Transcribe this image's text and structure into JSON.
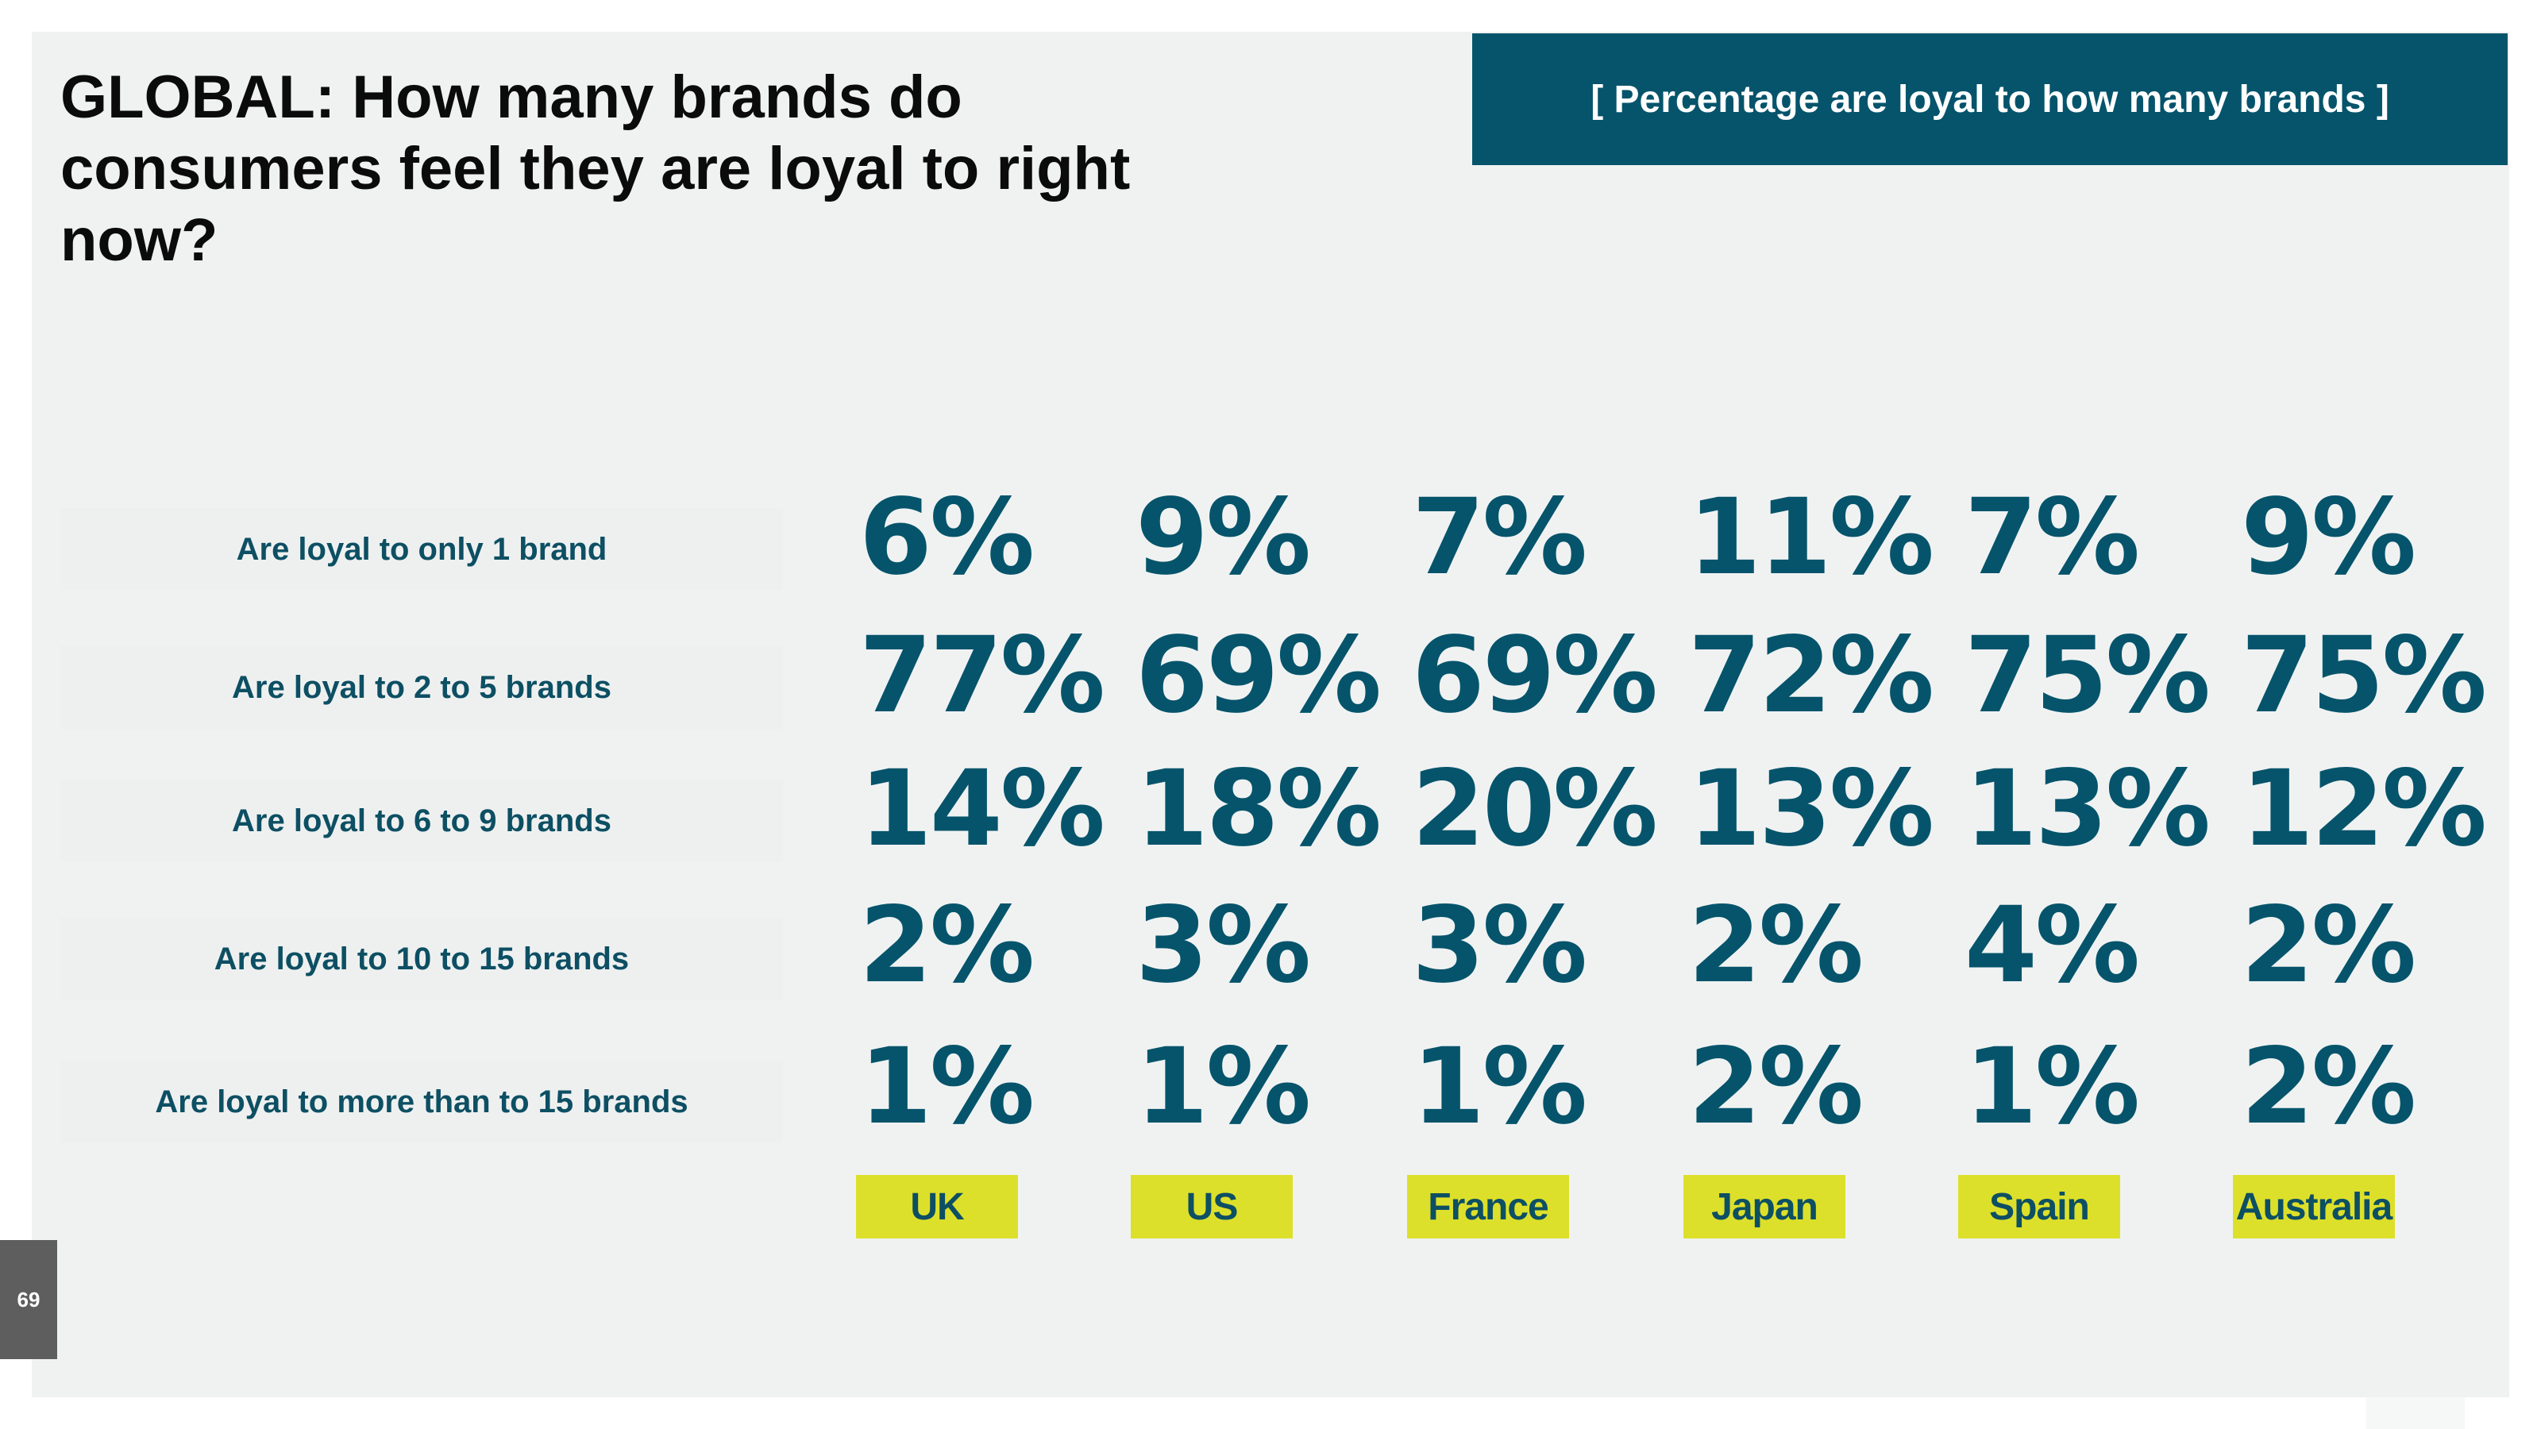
{
  "title": "GLOBAL: How many brands do consumers feel they are loyal to right now?",
  "header_label": "[ Percentage are loyal to how many brands ]",
  "page_number": "69",
  "colors": {
    "accent": "#05546b",
    "country_tag": "#dde02a",
    "background": "#f0f2f2"
  },
  "chart_data": {
    "type": "table",
    "title": "GLOBAL: How many brands do consumers feel they are loyal to right now?",
    "subtitle": "[ Percentage are loyal to how many brands ]",
    "columns": [
      "UK",
      "US",
      "France",
      "Japan",
      "Spain",
      "Australia"
    ],
    "rows": [
      {
        "label": "Are loyal to only 1 brand",
        "values": [
          "6%",
          "9%",
          "7%",
          "11%",
          "7%",
          "9%"
        ]
      },
      {
        "label": "Are loyal to 2 to 5 brands",
        "values": [
          "77%",
          "69%",
          "69%",
          "72%",
          "75%",
          "75%"
        ]
      },
      {
        "label": "Are loyal to 6 to 9 brands",
        "values": [
          "14%",
          "18%",
          "20%",
          "13%",
          "13%",
          "12%"
        ]
      },
      {
        "label": "Are loyal to 10 to 15 brands",
        "values": [
          "2%",
          "3%",
          "3%",
          "2%",
          "4%",
          "2%"
        ]
      },
      {
        "label": "Are loyal to more than to 15 brands",
        "values": [
          "1%",
          "1%",
          "1%",
          "2%",
          "1%",
          "2%"
        ]
      }
    ]
  }
}
